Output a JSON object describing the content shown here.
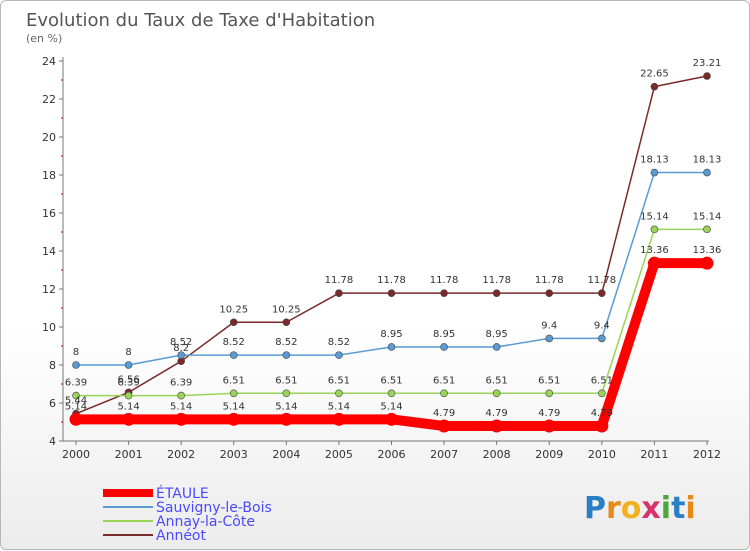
{
  "chart_data": {
    "type": "line",
    "title": "Evolution du Taux de Taxe d'Habitation",
    "subtitle": "(en %)",
    "x": [
      "2000",
      "2001",
      "2002",
      "2003",
      "2004",
      "2005",
      "2006",
      "2007",
      "2008",
      "2009",
      "2010",
      "2011",
      "2012"
    ],
    "ylim": [
      4,
      24
    ],
    "yticks": [
      4,
      6,
      8,
      10,
      12,
      14,
      16,
      18,
      20,
      22,
      24
    ],
    "grid": false,
    "legend_position": "bottom-left",
    "series": [
      {
        "name": "ÉTAULE",
        "color": "#ff0000",
        "values": [
          5.14,
          5.14,
          5.14,
          5.14,
          5.14,
          5.14,
          5.14,
          4.79,
          4.79,
          4.79,
          4.79,
          13.36,
          13.36
        ],
        "labels": [
          "5.14",
          "5.14",
          "5.14",
          "5.14",
          "5.14",
          "5.14",
          "5.14",
          "4.79",
          "4.79",
          "4.79",
          "4.79",
          "13.36",
          "13.36"
        ]
      },
      {
        "name": "Sauvigny-le-Bois",
        "color": "#5b9bd5",
        "values": [
          8,
          8,
          8.52,
          8.52,
          8.52,
          8.52,
          8.95,
          8.95,
          8.95,
          9.4,
          9.4,
          18.13,
          18.13
        ],
        "labels": [
          "8",
          "8",
          "8.52",
          "8.52",
          "8.52",
          "8.52",
          "8.95",
          "8.95",
          "8.95",
          "9.4",
          "9.4",
          "18.13",
          "18.13"
        ]
      },
      {
        "name": "Annay-la-Côte",
        "color": "#9ad456",
        "values": [
          6.39,
          6.39,
          6.39,
          6.51,
          6.51,
          6.51,
          6.51,
          6.51,
          6.51,
          6.51,
          6.51,
          15.14,
          15.14
        ],
        "labels": [
          "6.39",
          "6.39",
          "6.39",
          "6.51",
          "6.51",
          "6.51",
          "6.51",
          "6.51",
          "6.51",
          "6.51",
          "6.51",
          "15.14",
          "15.14"
        ]
      },
      {
        "name": "Annéot",
        "color": "#7a2a2a",
        "values": [
          5.44,
          6.56,
          8.2,
          10.25,
          10.25,
          11.78,
          11.78,
          11.78,
          11.78,
          11.78,
          11.78,
          22.65,
          23.21
        ],
        "labels": [
          "5.44",
          "6.56",
          "8.2",
          "10.25",
          "10.25",
          "11.78",
          "11.78",
          "11.78",
          "11.78",
          "11.78",
          "11.78",
          "22.65",
          "23.21"
        ]
      }
    ]
  },
  "logo": {
    "text": "Proxiti",
    "letters": [
      {
        "ch": "P",
        "color": "#2b7fc4"
      },
      {
        "ch": "r",
        "color": "#e88a1a"
      },
      {
        "ch": "o",
        "color": "#f2b01e"
      },
      {
        "ch": "x",
        "color": "#d6336c"
      },
      {
        "ch": "i",
        "color": "#4aa83c"
      },
      {
        "ch": "t",
        "color": "#2b7fc4"
      },
      {
        "ch": "i",
        "color": "#e88a1a"
      }
    ]
  }
}
